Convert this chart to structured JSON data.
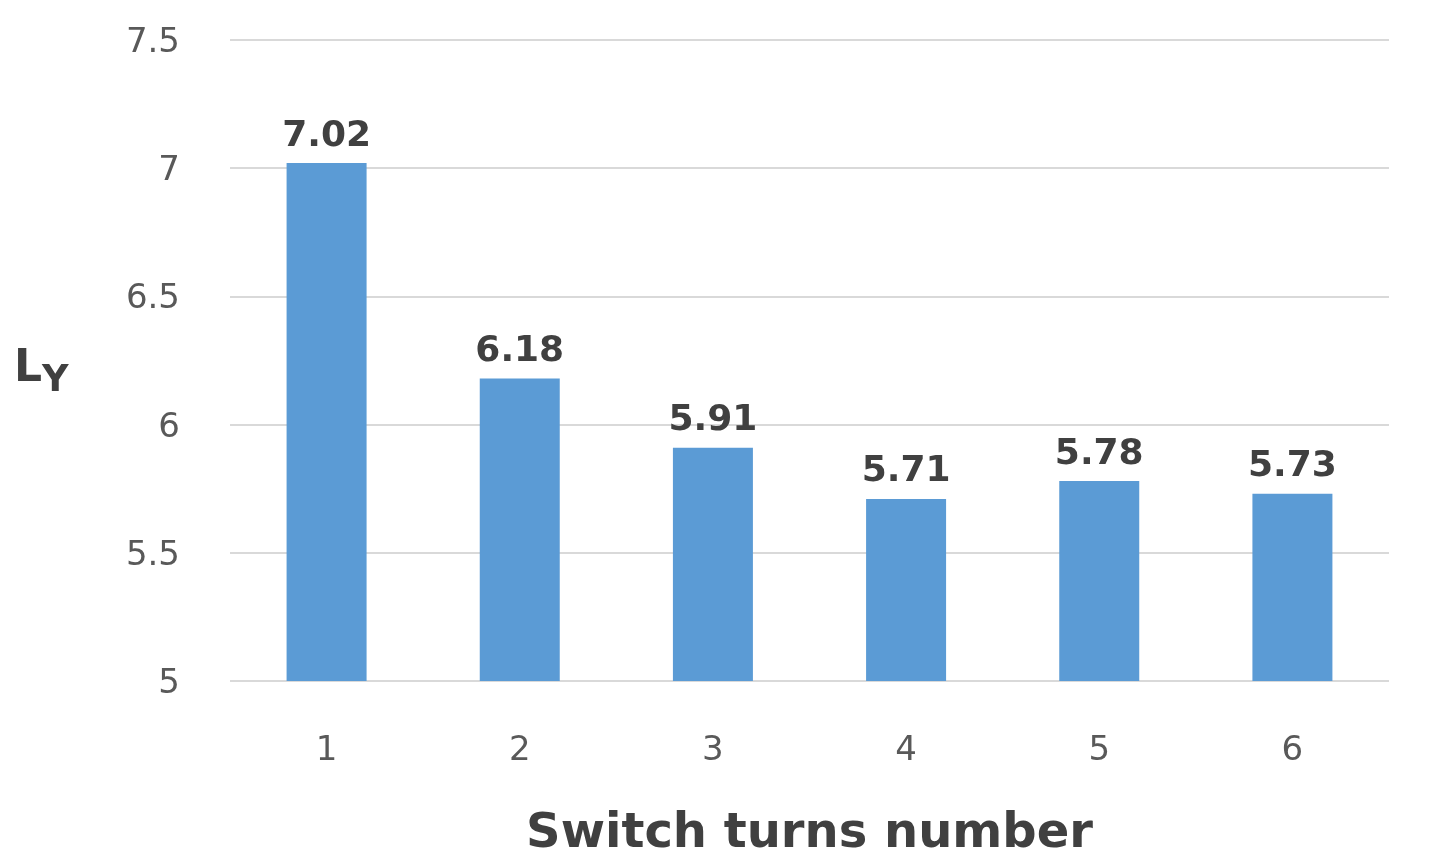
{
  "chart_data": {
    "type": "bar",
    "xlabel": "Switch turns number",
    "ylabel": "L$_{Y}$",
    "categories": [
      "1",
      "2",
      "3",
      "4",
      "5",
      "6"
    ],
    "values": [
      7.02,
      6.18,
      5.91,
      5.71,
      5.78,
      5.73
    ],
    "color": "#5b9bd5",
    "ylim": [
      5,
      7.5
    ],
    "yticks": [
      5,
      5.5,
      6,
      6.5,
      7,
      7.5
    ],
    "grid": "y",
    "data_labels": true
  }
}
